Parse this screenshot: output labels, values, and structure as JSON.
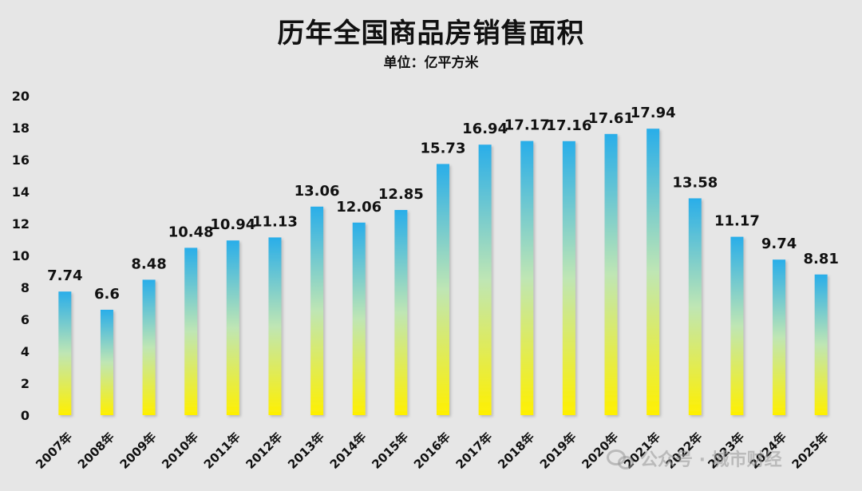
{
  "chart_data": {
    "type": "bar",
    "title": "历年全国商品房销售面积",
    "subtitle": "单位：亿平方米",
    "categories": [
      "2007年",
      "2008年",
      "2009年",
      "2010年",
      "2011年",
      "2012年",
      "2013年",
      "2014年",
      "2015年",
      "2016年",
      "2017年",
      "2018年",
      "2019年",
      "2020年",
      "2021年",
      "2022年",
      "2023年",
      "2024年",
      "2025年"
    ],
    "values": [
      7.74,
      6.6,
      8.48,
      10.48,
      10.94,
      11.13,
      13.06,
      12.06,
      12.85,
      15.73,
      16.94,
      17.17,
      17.16,
      17.61,
      17.94,
      13.58,
      11.17,
      9.74,
      8.81
    ],
    "value_labels": [
      "7.74",
      "6.6",
      "8.48",
      "10.48",
      "10.94",
      "11.13",
      "13.06",
      "12.06",
      "12.85",
      "15.73",
      "16.94",
      "17.17",
      "17.16",
      "17.61",
      "17.94",
      "13.58",
      "11.17",
      "9.74",
      "8.81"
    ],
    "ylim": [
      0,
      20
    ],
    "yticks": [
      "0",
      "2",
      "4",
      "6",
      "8",
      "10",
      "12",
      "14",
      "16",
      "18",
      "20"
    ],
    "grid": false,
    "legend": "none",
    "bar_gradient": {
      "top": "#29aee9",
      "bottom": "#fff000"
    }
  },
  "watermark": {
    "icon": "wechat-icon",
    "text": "公众号 · 城市财经"
  }
}
